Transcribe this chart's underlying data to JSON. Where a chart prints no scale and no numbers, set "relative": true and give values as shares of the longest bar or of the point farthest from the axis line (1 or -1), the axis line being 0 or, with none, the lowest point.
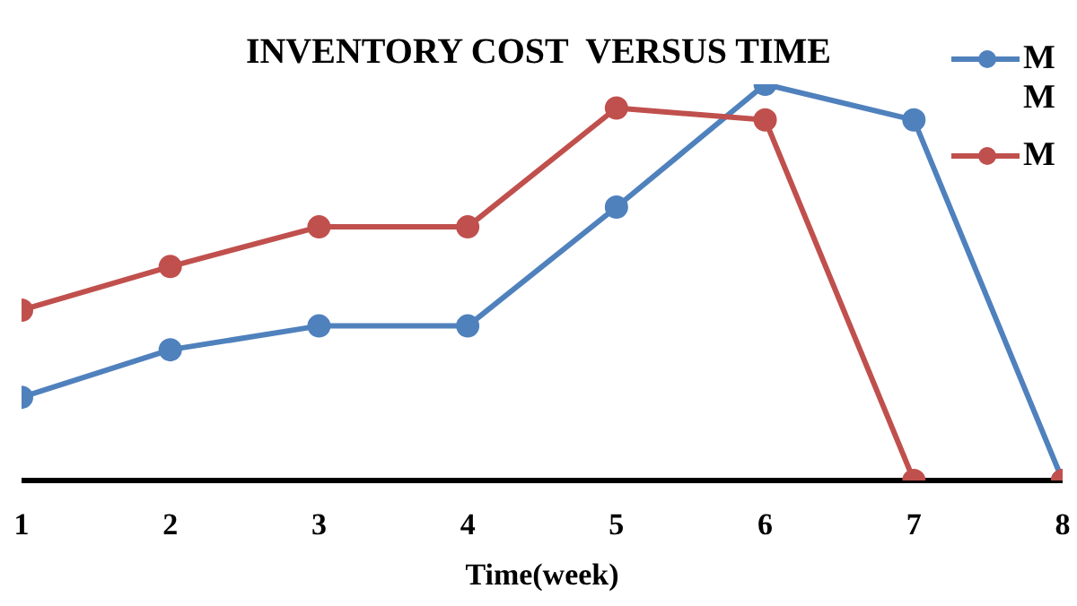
{
  "chart_data": {
    "type": "line",
    "title": "INVENTORY COST  VERSUS TIME",
    "xlabel": "Time(week)",
    "relative": true,
    "categories": [
      "1",
      "2",
      "3",
      "4",
      "5",
      "6",
      "7",
      "8"
    ],
    "series": [
      {
        "name": "M M",
        "color": "#4f81bd",
        "values": [
          0.21,
          0.33,
          0.39,
          0.39,
          0.69,
          1,
          0.91,
          0
        ]
      },
      {
        "name": "M",
        "color": "#c0504d",
        "values": [
          0.43,
          0.54,
          0.64,
          0.64,
          0.94,
          0.91,
          0,
          0
        ]
      }
    ],
    "legend": "top right",
    "marker": "circle",
    "line_style": "solid",
    "grid": false
  }
}
